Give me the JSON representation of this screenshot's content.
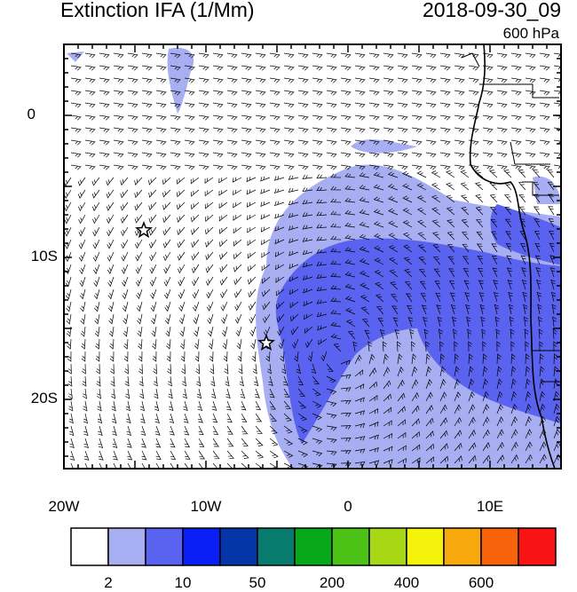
{
  "header": {
    "title": "Extinction IFA (1/Mm)",
    "date": "2018-09-30_09",
    "level": "600 hPa"
  },
  "axes": {
    "lon_ticks": [
      "20W",
      "10W",
      "0",
      "10E"
    ],
    "lat_ticks": [
      "0",
      "10S",
      "20S"
    ]
  },
  "colorbar": {
    "colors": [
      "#ffffff",
      "#a8aef2",
      "#5a62f0",
      "#0a1ef5",
      "#0436a8",
      "#067b6e",
      "#07a81a",
      "#4cc216",
      "#a8d815",
      "#f3f30c",
      "#f7a80c",
      "#f8620a",
      "#f81414"
    ],
    "labels": [
      "2",
      "10",
      "50",
      "200",
      "400",
      "600"
    ]
  },
  "markers": [
    {
      "name": "star-1",
      "lon": "14.3W",
      "lat": "8S"
    },
    {
      "name": "star-2",
      "lon": "5.7W",
      "lat": "16S"
    }
  ]
}
